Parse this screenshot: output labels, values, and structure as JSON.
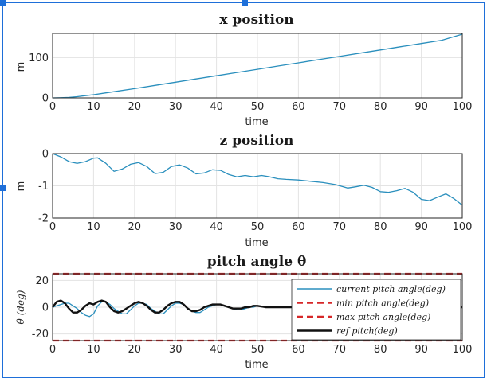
{
  "chart_data": [
    {
      "type": "line",
      "title": "x position",
      "xlabel": "time",
      "ylabel": "m",
      "xlim": [
        0,
        100
      ],
      "ylim": [
        0,
        160
      ],
      "xticks": [
        0,
        10,
        20,
        30,
        40,
        50,
        60,
        70,
        80,
        90,
        100
      ],
      "yticks": [
        0,
        100
      ],
      "grid": true,
      "series": [
        {
          "color": "#2a8fbd",
          "x": [
            0,
            2,
            4,
            6,
            8,
            10,
            15,
            20,
            25,
            30,
            35,
            40,
            45,
            50,
            55,
            60,
            65,
            70,
            75,
            80,
            85,
            90,
            95,
            100
          ],
          "y": [
            0,
            0.3,
            1.2,
            3,
            5.5,
            8,
            15.5,
            23,
            31,
            39,
            47,
            55,
            63,
            71,
            79,
            87,
            95,
            103,
            111,
            119,
            127,
            135,
            143,
            158
          ]
        }
      ]
    },
    {
      "type": "line",
      "title": "z position",
      "xlabel": "time",
      "ylabel": "m",
      "xlim": [
        0,
        100
      ],
      "ylim": [
        -2,
        0
      ],
      "xticks": [
        0,
        10,
        20,
        30,
        40,
        50,
        60,
        70,
        80,
        90,
        100
      ],
      "yticks": [
        0,
        -1,
        -2
      ],
      "grid": true,
      "series": [
        {
          "color": "#2a8fbd",
          "x": [
            0,
            2,
            4,
            6,
            8,
            10,
            11,
            13,
            15,
            17,
            19,
            21,
            23,
            25,
            27,
            29,
            31,
            33,
            35,
            37,
            39,
            41,
            43,
            45,
            47,
            49,
            51,
            53,
            55,
            57,
            60,
            63,
            66,
            69,
            72,
            74,
            76,
            78,
            80,
            82,
            84,
            86,
            88,
            90,
            92,
            94,
            96,
            98,
            100
          ],
          "y": [
            0,
            -0.1,
            -0.25,
            -0.3,
            -0.25,
            -0.14,
            -0.13,
            -0.3,
            -0.55,
            -0.48,
            -0.33,
            -0.28,
            -0.4,
            -0.62,
            -0.58,
            -0.4,
            -0.35,
            -0.45,
            -0.63,
            -0.6,
            -0.5,
            -0.52,
            -0.65,
            -0.72,
            -0.68,
            -0.72,
            -0.68,
            -0.72,
            -0.78,
            -0.8,
            -0.82,
            -0.86,
            -0.9,
            -0.96,
            -1.07,
            -1.03,
            -0.98,
            -1.05,
            -1.18,
            -1.2,
            -1.15,
            -1.08,
            -1.2,
            -1.42,
            -1.46,
            -1.35,
            -1.25,
            -1.4,
            -1.6
          ]
        }
      ]
    },
    {
      "type": "line",
      "title": "pitch angle θ",
      "xlabel": "time",
      "ylabel": "θ (deg)",
      "xlim": [
        0,
        100
      ],
      "ylim": [
        -25,
        25
      ],
      "xticks": [
        0,
        10,
        20,
        30,
        40,
        50,
        60,
        70,
        80,
        90,
        100
      ],
      "yticks": [
        20,
        0,
        -20
      ],
      "grid": true,
      "legend_position": "top-right",
      "series": [
        {
          "name": "current pitch angle(deg)",
          "color": "#2a8fbd",
          "style": "solid",
          "x": [
            0,
            1,
            2,
            3,
            4,
            5,
            6,
            7,
            8,
            9,
            10,
            11,
            12,
            13,
            14,
            15,
            16,
            17,
            18,
            19,
            20,
            21,
            22,
            23,
            24,
            25,
            26,
            27,
            28,
            29,
            30,
            31,
            32,
            33,
            34,
            35,
            36,
            37,
            38,
            39,
            40,
            41,
            42,
            43,
            44,
            45,
            46,
            47,
            48,
            49,
            50,
            52,
            55
          ],
          "y": [
            0,
            1,
            2,
            3,
            3,
            1,
            -1,
            -4,
            -6,
            -7,
            -5,
            1,
            4,
            4,
            2,
            -1,
            -3,
            -5,
            -5,
            -2,
            1,
            3,
            3,
            2,
            -1,
            -3,
            -5,
            -5,
            -2,
            1,
            3,
            3,
            2,
            -1,
            -3,
            -4,
            -4,
            -2,
            0,
            1,
            2,
            2,
            1,
            0,
            -1,
            -2,
            -2,
            -1,
            0,
            0,
            1,
            0,
            0
          ]
        },
        {
          "name": "min pitch angle(deg)",
          "color": "#d62728",
          "style": "dashed",
          "x": [
            0,
            100
          ],
          "y": [
            -25,
            -25
          ]
        },
        {
          "name": "max pitch angle(deg)",
          "color": "#d62728",
          "style": "dashed",
          "x": [
            0,
            100
          ],
          "y": [
            25,
            25
          ]
        },
        {
          "name": "ref pitch(deg)",
          "color": "#111111",
          "style": "solid",
          "x": [
            0,
            1,
            2,
            3,
            4,
            5,
            6,
            7,
            8,
            9,
            10,
            11,
            12,
            13,
            14,
            15,
            16,
            17,
            18,
            19,
            20,
            21,
            22,
            23,
            24,
            25,
            26,
            27,
            28,
            29,
            30,
            31,
            32,
            33,
            34,
            35,
            36,
            37,
            38,
            39,
            40,
            41,
            42,
            43,
            44,
            45,
            46,
            47,
            48,
            49,
            50,
            52,
            55,
            58,
            60,
            100
          ],
          "y": [
            0,
            4,
            5,
            3,
            -1,
            -4,
            -4,
            -2,
            1,
            3,
            2,
            4,
            5,
            4,
            0,
            -3,
            -4,
            -3,
            -1,
            1,
            3,
            4,
            3,
            1,
            -2,
            -4,
            -4,
            -2,
            1,
            3,
            4,
            4,
            2,
            -1,
            -3,
            -3,
            -2,
            0,
            1,
            2,
            2,
            2,
            1,
            0,
            -1,
            -1,
            -1,
            0,
            0,
            1,
            1,
            0,
            0,
            0,
            0,
            0
          ]
        }
      ]
    }
  ]
}
